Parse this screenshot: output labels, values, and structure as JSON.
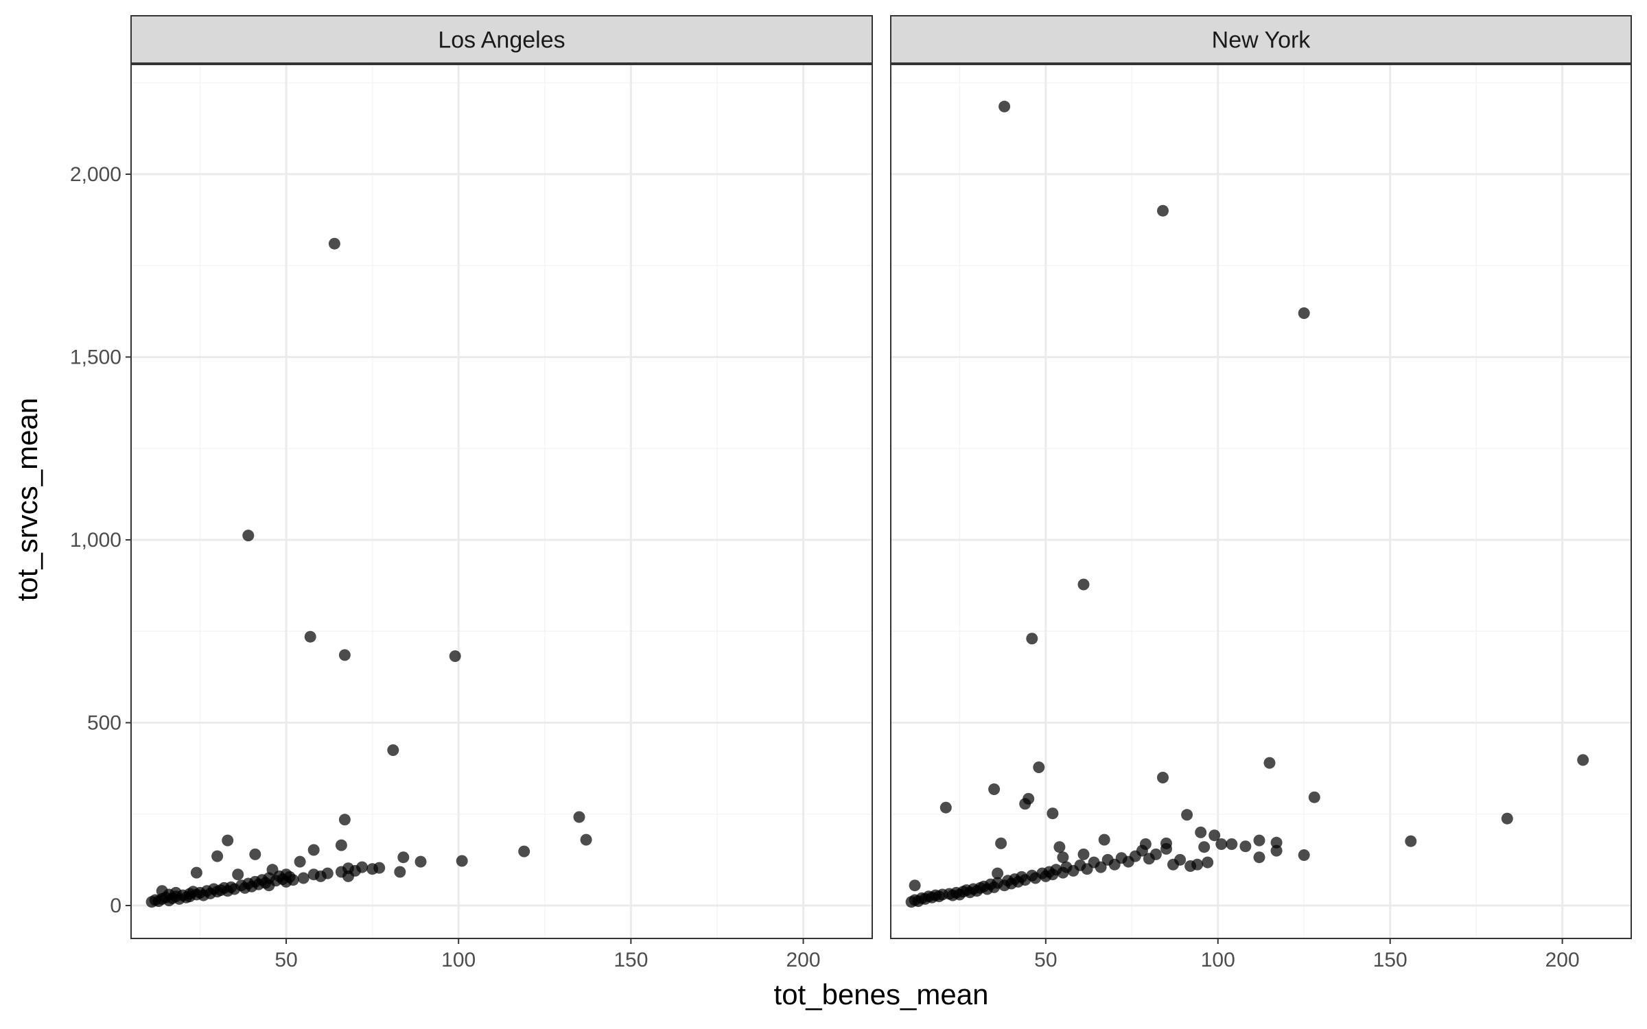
{
  "chart_data": {
    "type": "scatter",
    "xlabel": "tot_benes_mean",
    "ylabel": "tot_srvcs_mean",
    "xlim": [
      5,
      220
    ],
    "ylim": [
      -90,
      2300
    ],
    "x_ticks": [
      50,
      100,
      150,
      200
    ],
    "x_tick_labels": [
      "50",
      "100",
      "150",
      "200"
    ],
    "y_ticks": [
      0,
      500,
      1000,
      1500,
      2000
    ],
    "y_tick_labels": [
      "0",
      "500",
      "1,000",
      "1,500",
      "2,000"
    ],
    "grid": true,
    "point_color": "#000000",
    "point_opacity": 0.7,
    "panel_border_color": "#333333",
    "strip_fill": "#d9d9d9",
    "grid_major_color": "#ebebeb",
    "grid_minor_color": "#f5f5f5",
    "facets": [
      {
        "name": "Los Angeles",
        "points": [
          [
            11,
            10
          ],
          [
            12,
            15
          ],
          [
            13,
            12
          ],
          [
            14,
            18
          ],
          [
            14,
            40
          ],
          [
            15,
            22
          ],
          [
            16,
            14
          ],
          [
            16,
            30
          ],
          [
            17,
            20
          ],
          [
            18,
            25
          ],
          [
            18,
            35
          ],
          [
            19,
            18
          ],
          [
            20,
            28
          ],
          [
            21,
            22
          ],
          [
            22,
            32
          ],
          [
            22,
            25
          ],
          [
            23,
            38
          ],
          [
            24,
            30
          ],
          [
            24,
            90
          ],
          [
            25,
            35
          ],
          [
            26,
            28
          ],
          [
            27,
            40
          ],
          [
            28,
            33
          ],
          [
            29,
            45
          ],
          [
            30,
            38
          ],
          [
            30,
            135
          ],
          [
            31,
            42
          ],
          [
            32,
            48
          ],
          [
            33,
            178
          ],
          [
            33,
            40
          ],
          [
            34,
            50
          ],
          [
            35,
            45
          ],
          [
            36,
            85
          ],
          [
            37,
            55
          ],
          [
            38,
            48
          ],
          [
            39,
            1012
          ],
          [
            39,
            60
          ],
          [
            40,
            52
          ],
          [
            41,
            140
          ],
          [
            41,
            65
          ],
          [
            42,
            58
          ],
          [
            43,
            70
          ],
          [
            44,
            62
          ],
          [
            45,
            75
          ],
          [
            45,
            55
          ],
          [
            46,
            98
          ],
          [
            47,
            68
          ],
          [
            48,
            80
          ],
          [
            49,
            72
          ],
          [
            50,
            85
          ],
          [
            50,
            65
          ],
          [
            51,
            78
          ],
          [
            52,
            70
          ],
          [
            54,
            120
          ],
          [
            55,
            75
          ],
          [
            57,
            735
          ],
          [
            58,
            85
          ],
          [
            58,
            152
          ],
          [
            60,
            80
          ],
          [
            62,
            88
          ],
          [
            64,
            1810
          ],
          [
            66,
            165
          ],
          [
            66,
            92
          ],
          [
            67,
            235
          ],
          [
            67,
            685
          ],
          [
            68,
            80
          ],
          [
            68,
            102
          ],
          [
            70,
            95
          ],
          [
            72,
            105
          ],
          [
            75,
            100
          ],
          [
            77,
            103
          ],
          [
            81,
            425
          ],
          [
            83,
            92
          ],
          [
            84,
            132
          ],
          [
            89,
            120
          ],
          [
            99,
            682
          ],
          [
            101,
            122
          ],
          [
            119,
            148
          ],
          [
            135,
            242
          ],
          [
            137,
            180
          ]
        ]
      },
      {
        "name": "New York",
        "points": [
          [
            11,
            10
          ],
          [
            12,
            55
          ],
          [
            12,
            15
          ],
          [
            13,
            12
          ],
          [
            14,
            20
          ],
          [
            15,
            18
          ],
          [
            16,
            25
          ],
          [
            17,
            22
          ],
          [
            18,
            28
          ],
          [
            19,
            25
          ],
          [
            20,
            30
          ],
          [
            21,
            268
          ],
          [
            22,
            32
          ],
          [
            23,
            28
          ],
          [
            24,
            35
          ],
          [
            25,
            30
          ],
          [
            26,
            38
          ],
          [
            27,
            42
          ],
          [
            28,
            36
          ],
          [
            29,
            45
          ],
          [
            30,
            40
          ],
          [
            31,
            48
          ],
          [
            32,
            52
          ],
          [
            33,
            45
          ],
          [
            34,
            58
          ],
          [
            35,
            50
          ],
          [
            35,
            318
          ],
          [
            36,
            88
          ],
          [
            36,
            62
          ],
          [
            37,
            170
          ],
          [
            38,
            55
          ],
          [
            38,
            2185
          ],
          [
            39,
            68
          ],
          [
            40,
            60
          ],
          [
            41,
            72
          ],
          [
            42,
            65
          ],
          [
            43,
            78
          ],
          [
            44,
            70
          ],
          [
            44,
            278
          ],
          [
            45,
            292
          ],
          [
            46,
            82
          ],
          [
            46,
            730
          ],
          [
            47,
            75
          ],
          [
            48,
            378
          ],
          [
            49,
            88
          ],
          [
            50,
            80
          ],
          [
            51,
            92
          ],
          [
            52,
            252
          ],
          [
            52,
            85
          ],
          [
            53,
            98
          ],
          [
            54,
            160
          ],
          [
            55,
            90
          ],
          [
            55,
            132
          ],
          [
            56,
            105
          ],
          [
            58,
            95
          ],
          [
            60,
            110
          ],
          [
            61,
            140
          ],
          [
            61,
            878
          ],
          [
            62,
            100
          ],
          [
            64,
            118
          ],
          [
            66,
            105
          ],
          [
            67,
            180
          ],
          [
            68,
            125
          ],
          [
            70,
            112
          ],
          [
            72,
            130
          ],
          [
            74,
            120
          ],
          [
            76,
            135
          ],
          [
            78,
            150
          ],
          [
            79,
            168
          ],
          [
            80,
            128
          ],
          [
            82,
            140
          ],
          [
            84,
            350
          ],
          [
            84,
            1900
          ],
          [
            85,
            155
          ],
          [
            85,
            170
          ],
          [
            87,
            112
          ],
          [
            89,
            125
          ],
          [
            91,
            248
          ],
          [
            92,
            108
          ],
          [
            94,
            112
          ],
          [
            95,
            200
          ],
          [
            96,
            160
          ],
          [
            97,
            118
          ],
          [
            99,
            192
          ],
          [
            101,
            168
          ],
          [
            104,
            168
          ],
          [
            108,
            162
          ],
          [
            112,
            132
          ],
          [
            112,
            178
          ],
          [
            115,
            390
          ],
          [
            117,
            150
          ],
          [
            117,
            172
          ],
          [
            125,
            138
          ],
          [
            125,
            1620
          ],
          [
            128,
            296
          ],
          [
            156,
            176
          ],
          [
            184,
            238
          ],
          [
            206,
            398
          ]
        ]
      }
    ]
  }
}
